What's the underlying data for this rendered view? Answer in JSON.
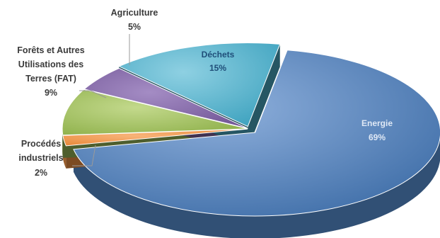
{
  "chart_data": {
    "type": "pie",
    "style": "3d-exploded",
    "title": "",
    "slices": [
      {
        "key": "energie",
        "label": "Energie",
        "value": 69,
        "value_text": "69%",
        "color": "#4F81BD",
        "label_inside": true
      },
      {
        "key": "procedes",
        "label_lines": [
          "Procédés",
          "industriels"
        ],
        "value": 2,
        "value_text": "2%",
        "color": "#F79646",
        "label_inside": false
      },
      {
        "key": "fat",
        "label_lines": [
          "Forêts et Autres",
          "Utilisations des",
          "Terres (FAT)"
        ],
        "value": 9,
        "value_text": "9%",
        "color": "#9BBB59",
        "label_inside": false
      },
      {
        "key": "agriculture",
        "label_lines": [
          "Agriculture"
        ],
        "value": 5,
        "value_text": "5%",
        "color": "#8064A2",
        "label_inside": false
      },
      {
        "key": "dechets",
        "label": "Déchets",
        "value": 15,
        "value_text": "15%",
        "color": "#4BACC6",
        "label_inside": true
      }
    ]
  }
}
